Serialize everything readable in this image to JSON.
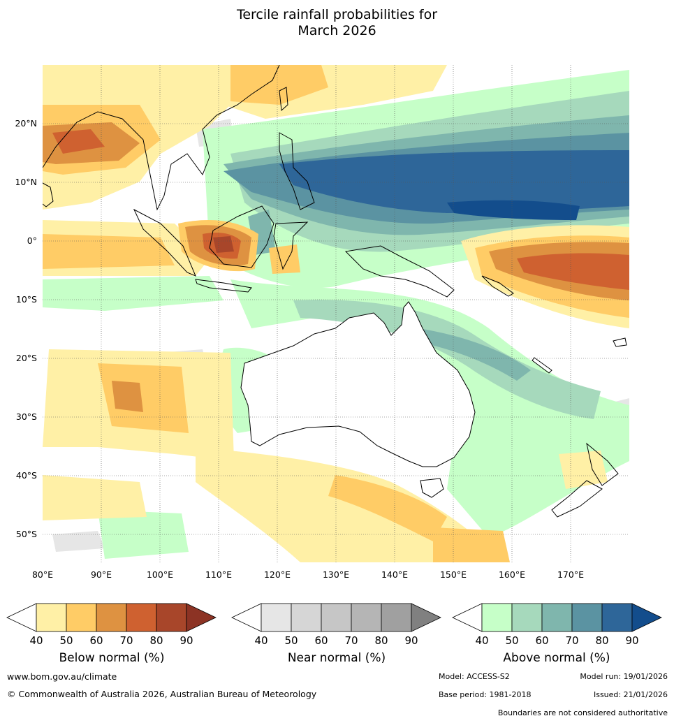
{
  "title_line1": "Tercile rainfall probabilities for",
  "title_line2": "March 2026",
  "map": {
    "lon_labels": [
      "80°E",
      "90°E",
      "100°E",
      "110°E",
      "120°E",
      "130°E",
      "140°E",
      "150°E",
      "160°E",
      "170°E"
    ],
    "lat_labels": [
      "20°N",
      "10°N",
      "0°",
      "10°S",
      "20°S",
      "30°S",
      "40°S",
      "50°S"
    ]
  },
  "colorbars": [
    {
      "title": "Below normal (%)",
      "ticks": [
        "40",
        "50",
        "60",
        "70",
        "80",
        "90"
      ],
      "colors": [
        "#fff0a6",
        "#ffcc66",
        "#de9241",
        "#cf6130",
        "#a8462a"
      ],
      "extend_color": "#8c3324"
    },
    {
      "title": "Near normal (%)",
      "ticks": [
        "40",
        "50",
        "60",
        "70",
        "80",
        "90"
      ],
      "colors": [
        "#e6e6e6",
        "#d6d6d6",
        "#c6c6c6",
        "#b5b5b5",
        "#a0a0a0"
      ],
      "extend_color": "#808080"
    },
    {
      "title": "Above normal (%)",
      "ticks": [
        "40",
        "50",
        "60",
        "70",
        "80",
        "90"
      ],
      "colors": [
        "#c6ffc8",
        "#a6d9bc",
        "#7fb6ad",
        "#5b93a2",
        "#2e6699"
      ],
      "extend_color": "#134d8c"
    }
  ],
  "footer": {
    "website": "www.bom.gov.au/climate",
    "copyright": "© Commonwealth of Australia 2026, Australian Bureau of Meteorology",
    "model": "Model: ACCESS-S2",
    "model_run": "Model run: 19/01/2026",
    "base_period": "Base period: 1981-2018",
    "issued": "Issued: 21/01/2026",
    "disclaimer": "Boundaries are not considered authoritative"
  }
}
